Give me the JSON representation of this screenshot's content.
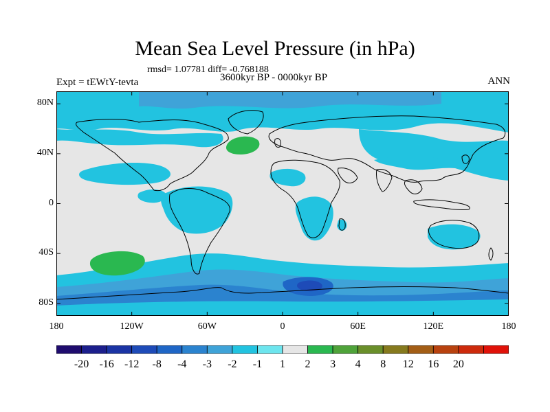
{
  "title": "Mean Sea Level Pressure (in hPa)",
  "stats": "rmsd= 1.07781 diff= -0.768188",
  "experiment": "Expt = tEWtY-tevta",
  "period": "3600kyr BP - 0000kyr BP",
  "season": "ANN",
  "y_axis": {
    "ticks": [
      {
        "label": "80N",
        "lat": 80
      },
      {
        "label": "40N",
        "lat": 40
      },
      {
        "label": "0",
        "lat": 0
      },
      {
        "label": "40S",
        "lat": -40
      },
      {
        "label": "80S",
        "lat": -80
      }
    ]
  },
  "x_axis": {
    "ticks": [
      {
        "label": "180",
        "lon": -180
      },
      {
        "label": "120W",
        "lon": -120
      },
      {
        "label": "60W",
        "lon": -60
      },
      {
        "label": "0",
        "lon": 0
      },
      {
        "label": "60E",
        "lon": 60
      },
      {
        "label": "120E",
        "lon": 120
      },
      {
        "label": "180",
        "lon": 180
      }
    ]
  },
  "colorbar": {
    "colors": [
      "#1f0c6e",
      "#1c1f8c",
      "#1b34a4",
      "#1e4bb8",
      "#1f66c6",
      "#2b83cf",
      "#3fa3d8",
      "#22c3e0",
      "#6de5ee",
      "#e6e6e6",
      "#2ab850",
      "#4fa33a",
      "#6a8f2a",
      "#867a1e",
      "#a35e16",
      "#b8420f",
      "#cd2a0c",
      "#e01209"
    ],
    "labels": [
      "-20",
      "-16",
      "-12",
      "-8",
      "-4",
      "-3",
      "-2",
      "-1",
      "1",
      "2",
      "3",
      "4",
      "8",
      "12",
      "16",
      "20"
    ]
  },
  "field": {
    "background_color": "#e6e6e6",
    "categories": {
      "-1": "#22c3e0",
      "-2": "#3fa3d8",
      "-3": "#2b83cf",
      "-4": "#1f66c6",
      "-8": "#1e4bb8",
      "2": "#2ab850"
    }
  },
  "coast_color": "#000000"
}
